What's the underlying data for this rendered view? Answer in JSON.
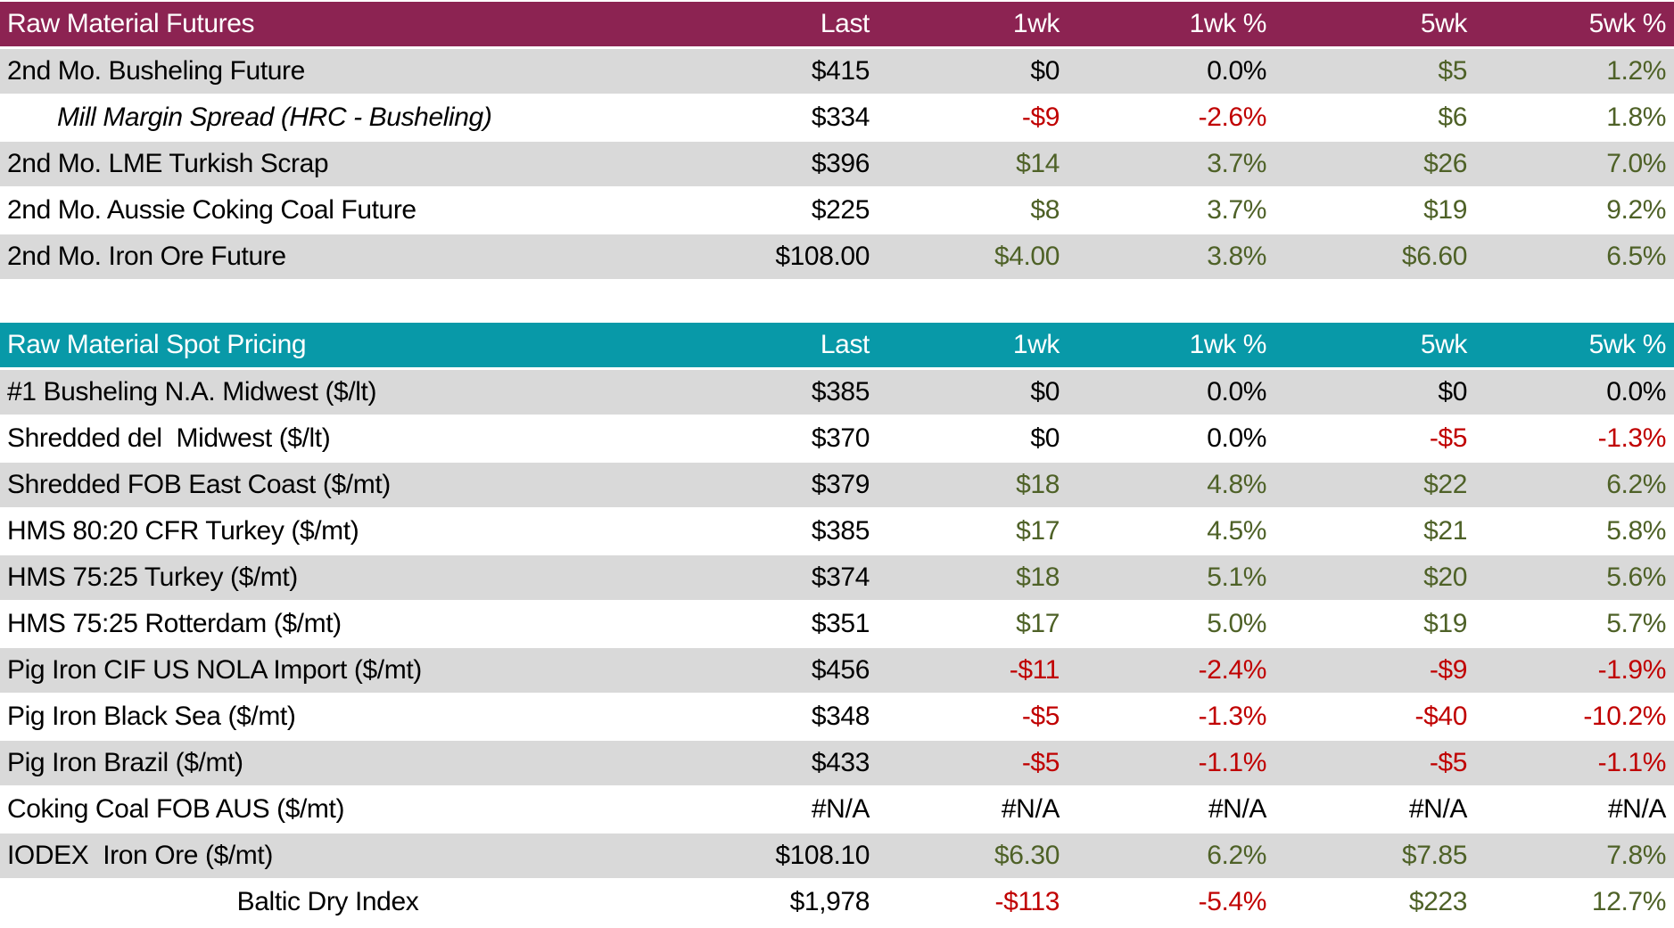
{
  "colors": {
    "futures_header_bg": "#8C2352",
    "spot_header_bg": "#0899A8",
    "header_text": "#FFFFFF",
    "stripe_row_bg": "#D9D9D9",
    "positive_text": "#4E6127",
    "negative_text": "#C00000",
    "neutral_text": "#000000"
  },
  "chart_data": [
    {
      "type": "table",
      "title": "Raw Material Futures",
      "columns": [
        "Last",
        "1wk",
        "1wk %",
        "5wk",
        "5wk %"
      ],
      "rows": [
        {
          "name": "2nd Mo. Busheling Future",
          "values": [
            "$415",
            "$0",
            "0.0%",
            "$5",
            "1.2%"
          ]
        },
        {
          "name": "Mill Margin Spread (HRC - Busheling)",
          "style": "italic-indent",
          "values": [
            "$334",
            "-$9",
            "-2.6%",
            "$6",
            "1.8%"
          ]
        },
        {
          "name": "2nd Mo. LME Turkish Scrap",
          "values": [
            "$396",
            "$14",
            "3.7%",
            "$26",
            "7.0%"
          ]
        },
        {
          "name": "2nd Mo. Aussie Coking Coal Future",
          "values": [
            "$225",
            "$8",
            "3.7%",
            "$19",
            "9.2%"
          ]
        },
        {
          "name": "2nd Mo. Iron Ore Future",
          "values": [
            "$108.00",
            "$4.00",
            "3.8%",
            "$6.60",
            "6.5%"
          ]
        }
      ]
    },
    {
      "type": "table",
      "title": "Raw Material Spot Pricing",
      "columns": [
        "Last",
        "1wk",
        "1wk %",
        "5wk",
        "5wk %"
      ],
      "rows": [
        {
          "name": "#1 Busheling N.A. Midwest ($/lt)",
          "values": [
            "$385",
            "$0",
            "0.0%",
            "$0",
            "0.0%"
          ]
        },
        {
          "name": "Shredded del  Midwest ($/lt)",
          "values": [
            "$370",
            "$0",
            "0.0%",
            "-$5",
            "-1.3%"
          ]
        },
        {
          "name": "Shredded FOB East Coast ($/mt)",
          "values": [
            "$379",
            "$18",
            "4.8%",
            "$22",
            "6.2%"
          ]
        },
        {
          "name": "HMS 80:20 CFR Turkey ($/mt)",
          "values": [
            "$385",
            "$17",
            "4.5%",
            "$21",
            "5.8%"
          ]
        },
        {
          "name": "HMS 75:25 Turkey ($/mt)",
          "values": [
            "$374",
            "$18",
            "5.1%",
            "$20",
            "5.6%"
          ]
        },
        {
          "name": "HMS 75:25 Rotterdam ($/mt)",
          "values": [
            "$351",
            "$17",
            "5.0%",
            "$19",
            "5.7%"
          ]
        },
        {
          "name": "Pig Iron CIF US NOLA Import ($/mt)",
          "values": [
            "$456",
            "-$11",
            "-2.4%",
            "-$9",
            "-1.9%"
          ]
        },
        {
          "name": "Pig Iron Black Sea ($/mt)",
          "values": [
            "$348",
            "-$5",
            "-1.3%",
            "-$40",
            "-10.2%"
          ]
        },
        {
          "name": "Pig Iron Brazil ($/mt)",
          "values": [
            "$433",
            "-$5",
            "-1.1%",
            "-$5",
            "-1.1%"
          ]
        },
        {
          "name": "Coking Coal FOB AUS ($/mt)",
          "values": [
            "#N/A",
            "#N/A",
            "#N/A",
            "#N/A",
            "#N/A"
          ]
        },
        {
          "name": "IODEX  Iron Ore ($/mt)",
          "values": [
            "$108.10",
            "$6.30",
            "6.2%",
            "$7.85",
            "7.8%"
          ]
        },
        {
          "name": "Baltic Dry Index",
          "style": "center",
          "values": [
            "$1,978",
            "-$113",
            "-5.4%",
            "$223",
            "12.7%"
          ]
        }
      ]
    }
  ]
}
